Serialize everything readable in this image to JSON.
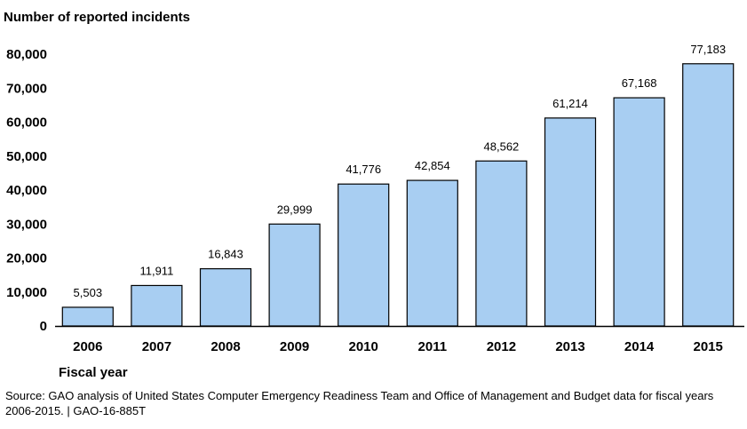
{
  "chart_data": {
    "type": "bar",
    "ylabel": "Number of reported incidents",
    "xlabel": "Fiscal year",
    "categories": [
      "2006",
      "2007",
      "2008",
      "2009",
      "2010",
      "2011",
      "2012",
      "2013",
      "2014",
      "2015"
    ],
    "values": [
      5503,
      11911,
      16843,
      29999,
      41776,
      42854,
      48562,
      61214,
      67168,
      77183
    ],
    "value_labels": [
      "5,503",
      "11,911",
      "16,843",
      "29,999",
      "41,776",
      "42,854",
      "48,562",
      "61,214",
      "67,168",
      "77,183"
    ],
    "ylim": [
      0,
      80000
    ],
    "yticks": [
      0,
      10000,
      20000,
      30000,
      40000,
      50000,
      60000,
      70000,
      80000
    ],
    "ytick_labels": [
      "0",
      "10,000",
      "20,000",
      "30,000",
      "40,000",
      "50,000",
      "60,000",
      "70,000",
      "80,000"
    ],
    "grid": false,
    "legend": "none",
    "bar_color": "#a8cef2",
    "bar_edge_color": "#000000"
  },
  "source_note": "Source: GAO analysis of United States Computer Emergency Readiness Team and Office of Management and Budget data for fiscal years 2006-2015.  |  GAO-16-885T"
}
